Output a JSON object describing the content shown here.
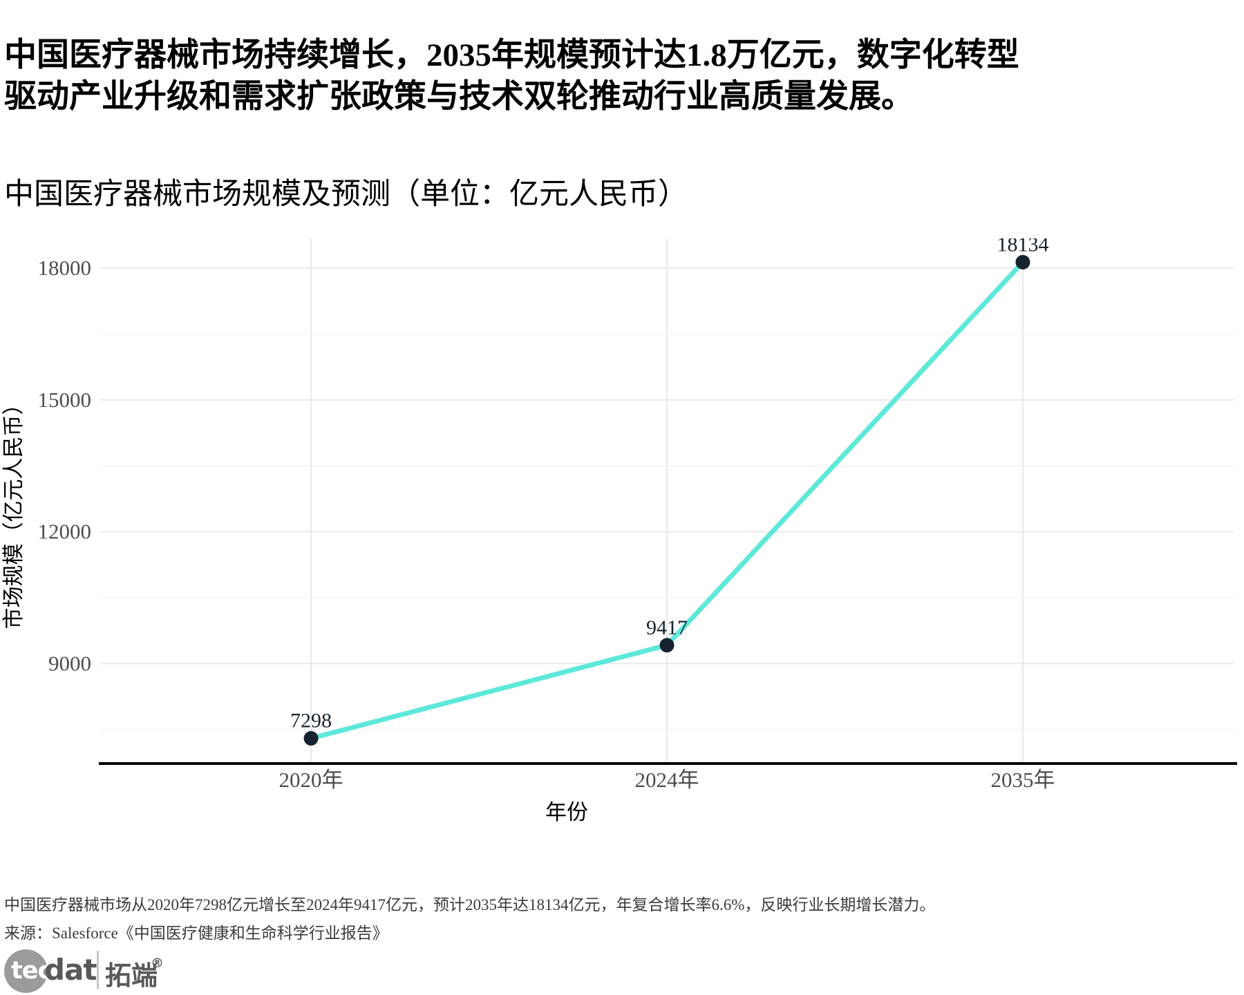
{
  "page": {
    "title": "中国医疗器械市场持续增长，2035年规模预计达1.8万亿元，数字化转型\n驱动产业升级和需求扩张政策与技术双轮推动行业高质量发展。",
    "footnote": "中国医疗器械市场从2020年7298亿元增长至2024年9417亿元，预计2035年达18134亿元，年复合增长率6.6%，反映行业长期增长潜力。",
    "source": "来源：Salesforce《中国医疗健康和生命科学行业报告》"
  },
  "logo": {
    "part1": "tec",
    "part2": "dat",
    "part3": "拓端",
    "registered": "®"
  },
  "chart_data": {
    "type": "line",
    "title": "中国医疗器械市场规模及预测（单位：亿元人民币）",
    "categories": [
      "2020年",
      "2024年",
      "2035年"
    ],
    "series": [
      {
        "name": "市场规模",
        "values": [
          7298,
          9417,
          18134
        ]
      }
    ],
    "data_labels": [
      "7298",
      "9417",
      "18134"
    ],
    "xlabel": "年份",
    "ylabel": "市场规模（亿元人民币）",
    "ylim": [
      6756,
      18676
    ],
    "y_major_ticks": [
      9000,
      12000,
      15000,
      18000
    ],
    "y_minor_ticks": [
      7500,
      10500,
      13500,
      16500
    ],
    "grid": true,
    "legend_position": "none",
    "line_color": "#5de8da",
    "point_color": "#16232e",
    "label_color": "#16232e",
    "grid_major_color": "#e9e9e9",
    "grid_minor_color": "#f4f4f4",
    "axis_line_color": "#000000",
    "tick_label_color": "#4d4d4d",
    "axis_title_color": "#000000"
  }
}
